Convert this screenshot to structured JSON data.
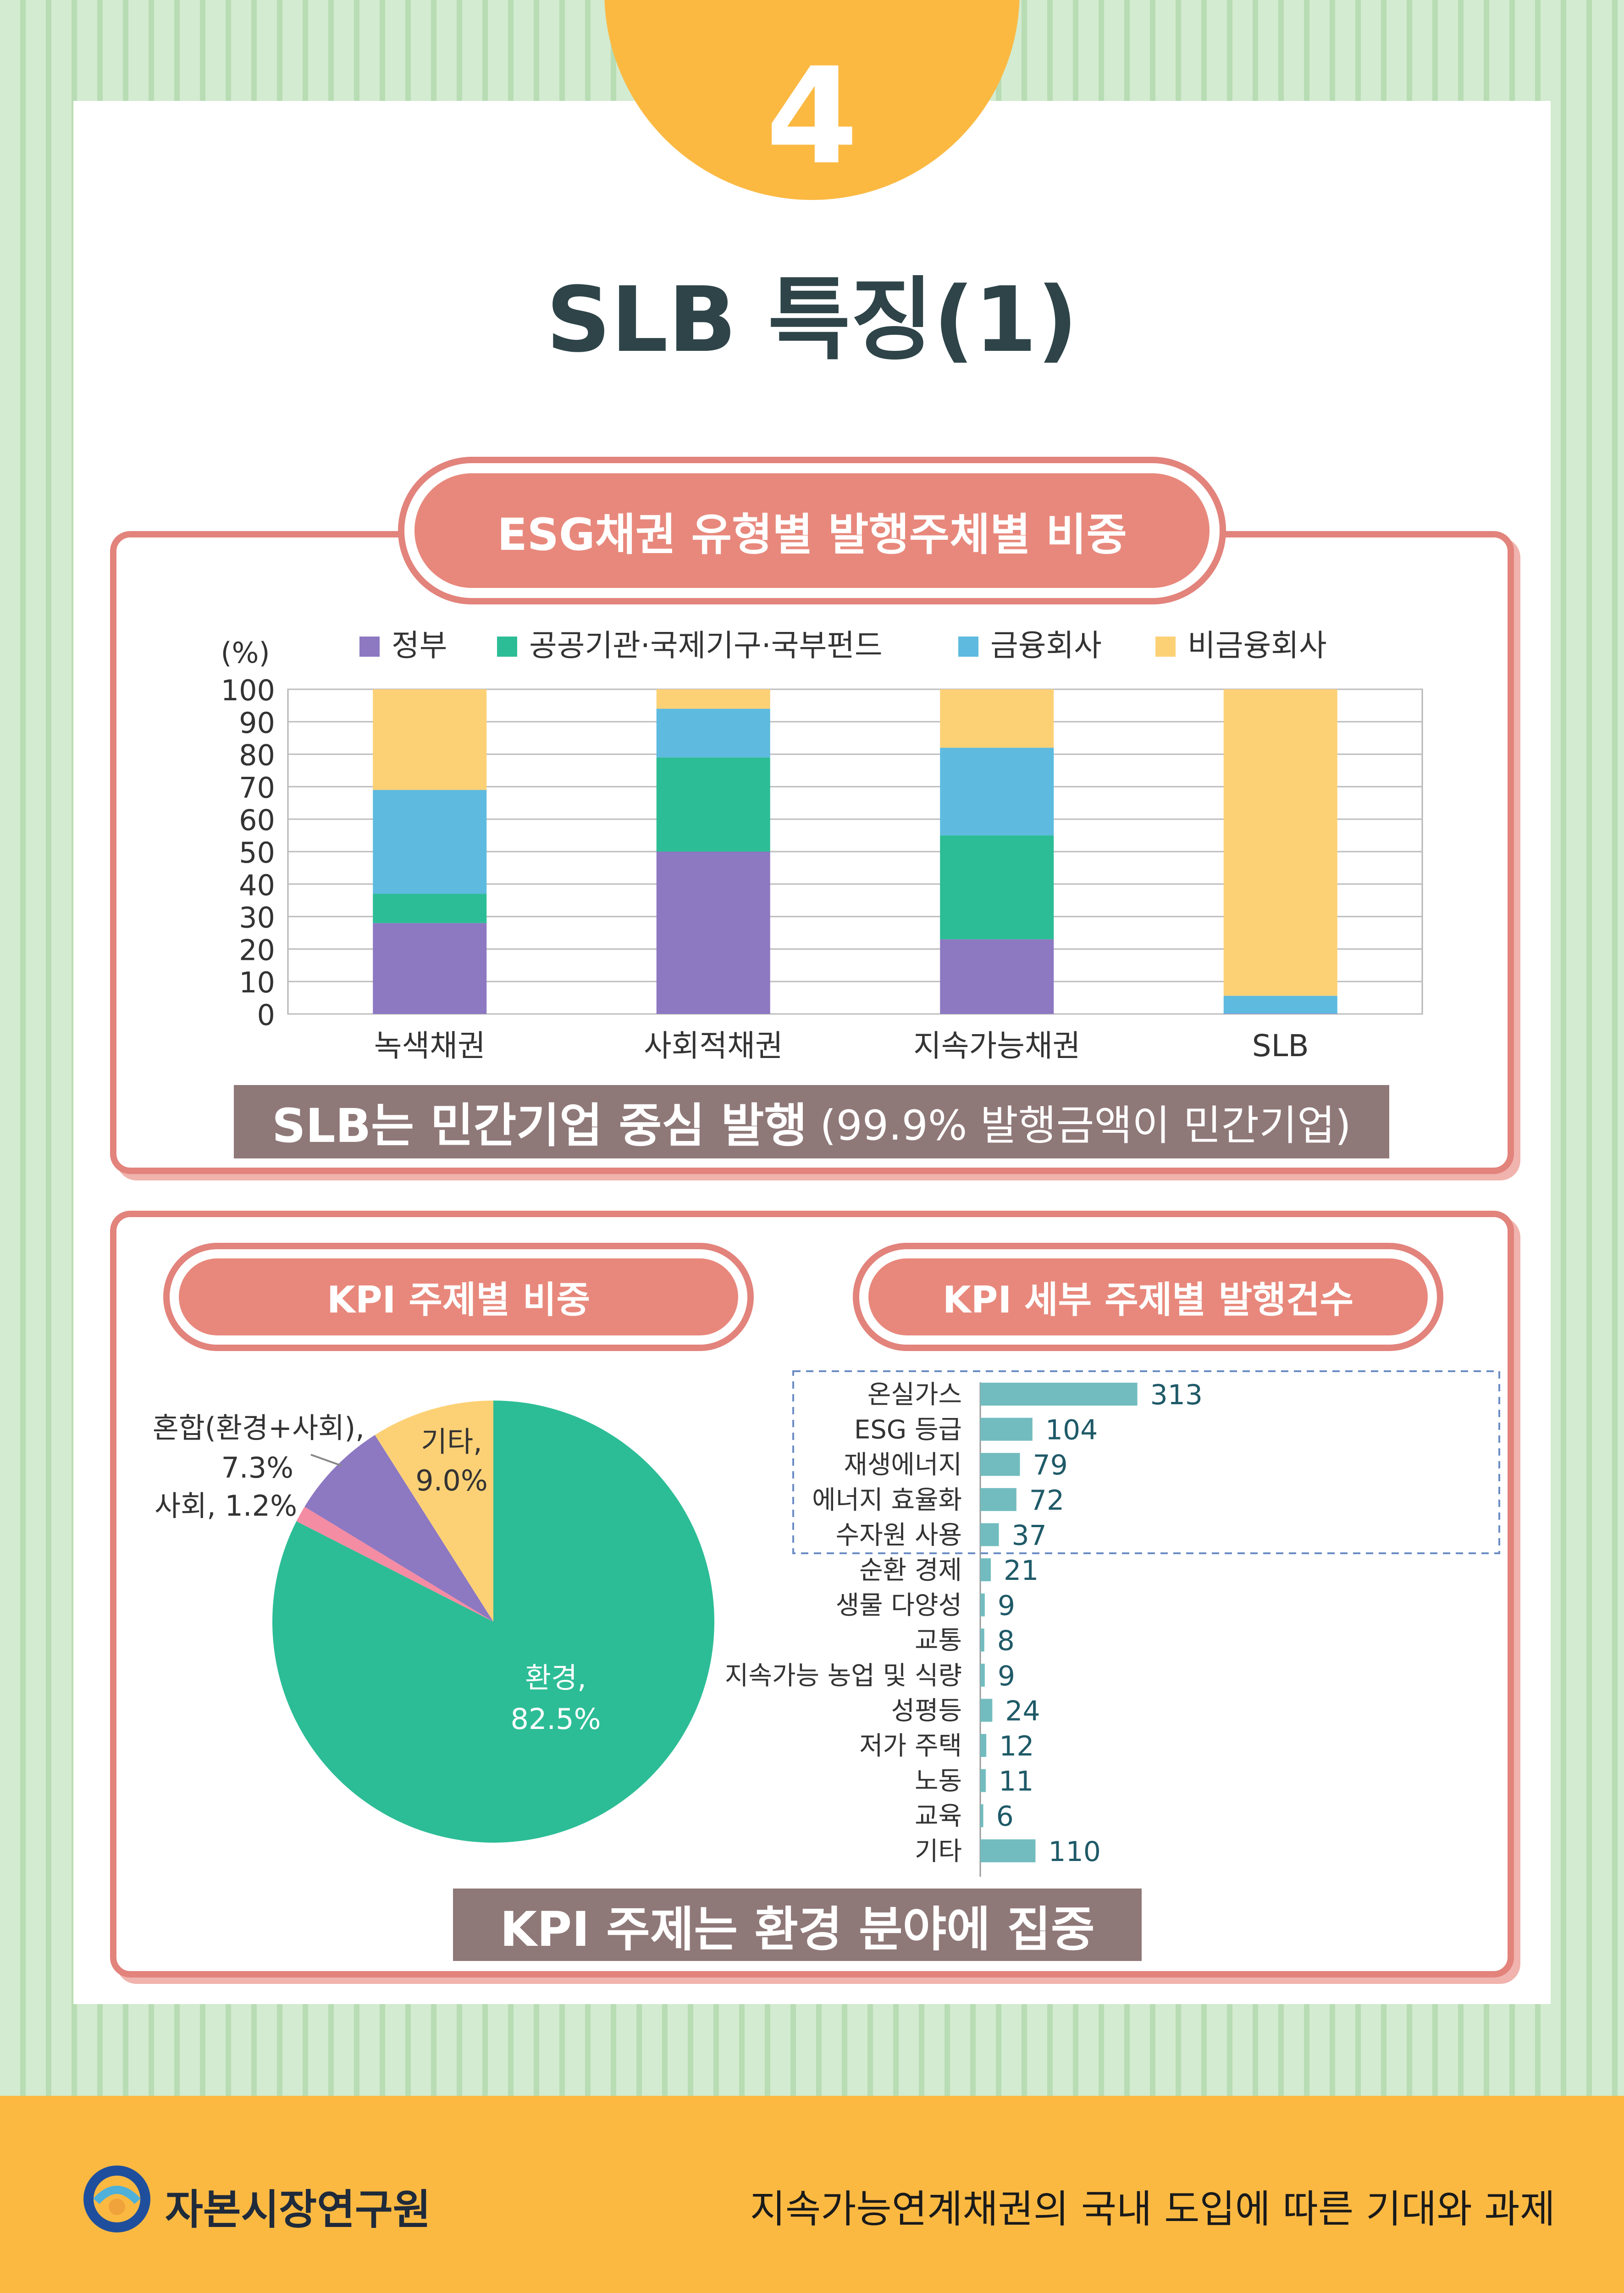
{
  "page_number": "4",
  "page_title": "SLB 특징(1)",
  "section1": {
    "pill_title": "ESG채권 유형별 발행주체별 비중",
    "banner_bold": "SLB는 민간기업 중심 발행",
    "banner_light": "(99.9% 발행금액이 민간기업)"
  },
  "section2": {
    "pie_pill_title": "KPI 주제별 비중",
    "bar_pill_title": "KPI 세부 주제별 발행건수",
    "banner": "KPI 주제는 환경 분야에 집중"
  },
  "footer": {
    "logo_text": "자본시장연구원",
    "right_text": "지속가능연계채권의 국내 도입에 따른 기대와 과제"
  },
  "colors": {
    "gov": "#8d78c2",
    "public": "#2cbd96",
    "finance": "#5ebadf",
    "nonfinance": "#fcd176",
    "environment": "#2cbd96",
    "social": "#f48ca3",
    "mixed": "#8d78c2",
    "other": "#fcd176",
    "hbar": "#72bcbf",
    "accent": "#e8887c",
    "orange": "#fbb942"
  },
  "chart_data": [
    {
      "type": "bar",
      "stacked": true,
      "ylabel": "(%)",
      "ylim": [
        0,
        100
      ],
      "yticks": [
        0,
        10,
        20,
        30,
        40,
        50,
        60,
        70,
        80,
        90,
        100
      ],
      "grid": true,
      "legend": "top",
      "categories": [
        "녹색채권",
        "사회적채권",
        "지속가능채권",
        "SLB"
      ],
      "series": [
        {
          "name": "정부",
          "values": [
            28,
            50,
            23,
            0.1
          ]
        },
        {
          "name": "공공기관·국제기구·국부펀드",
          "values": [
            9,
            29,
            32,
            0
          ]
        },
        {
          "name": "금융회사",
          "values": [
            32,
            15,
            27,
            5.5
          ]
        },
        {
          "name": "비금융회사",
          "values": [
            31,
            6,
            18,
            94.4
          ]
        }
      ]
    },
    {
      "type": "pie",
      "slices": [
        {
          "name": "환경",
          "label": "환경,",
          "value": 82.5,
          "value_label": "82.5%"
        },
        {
          "name": "사회",
          "label": "사회, 1.2%",
          "value": 1.2,
          "value_label": ""
        },
        {
          "name": "혼합(환경+사회)",
          "label": "혼합(환경+사회),",
          "value": 7.3,
          "value_label": "7.3%"
        },
        {
          "name": "기타",
          "label": "기타,",
          "value": 9.0,
          "value_label": "9.0%"
        }
      ]
    },
    {
      "type": "bar",
      "orientation": "horizontal",
      "categories": [
        "온실가스",
        "ESG 등급",
        "재생에너지",
        "에너지 효율화",
        "수자원 사용",
        "순환 경제",
        "생물 다양성",
        "교통",
        "지속가능 농업 및 식량",
        "성평등",
        "저가 주택",
        "노동",
        "교육",
        "기타"
      ],
      "values": [
        313,
        104,
        79,
        72,
        37,
        21,
        9,
        8,
        9,
        24,
        12,
        11,
        6,
        110
      ],
      "highlighted": [
        "온실가스",
        "ESG 등급",
        "재생에너지",
        "에너지 효율화",
        "수자원 사용"
      ]
    }
  ]
}
